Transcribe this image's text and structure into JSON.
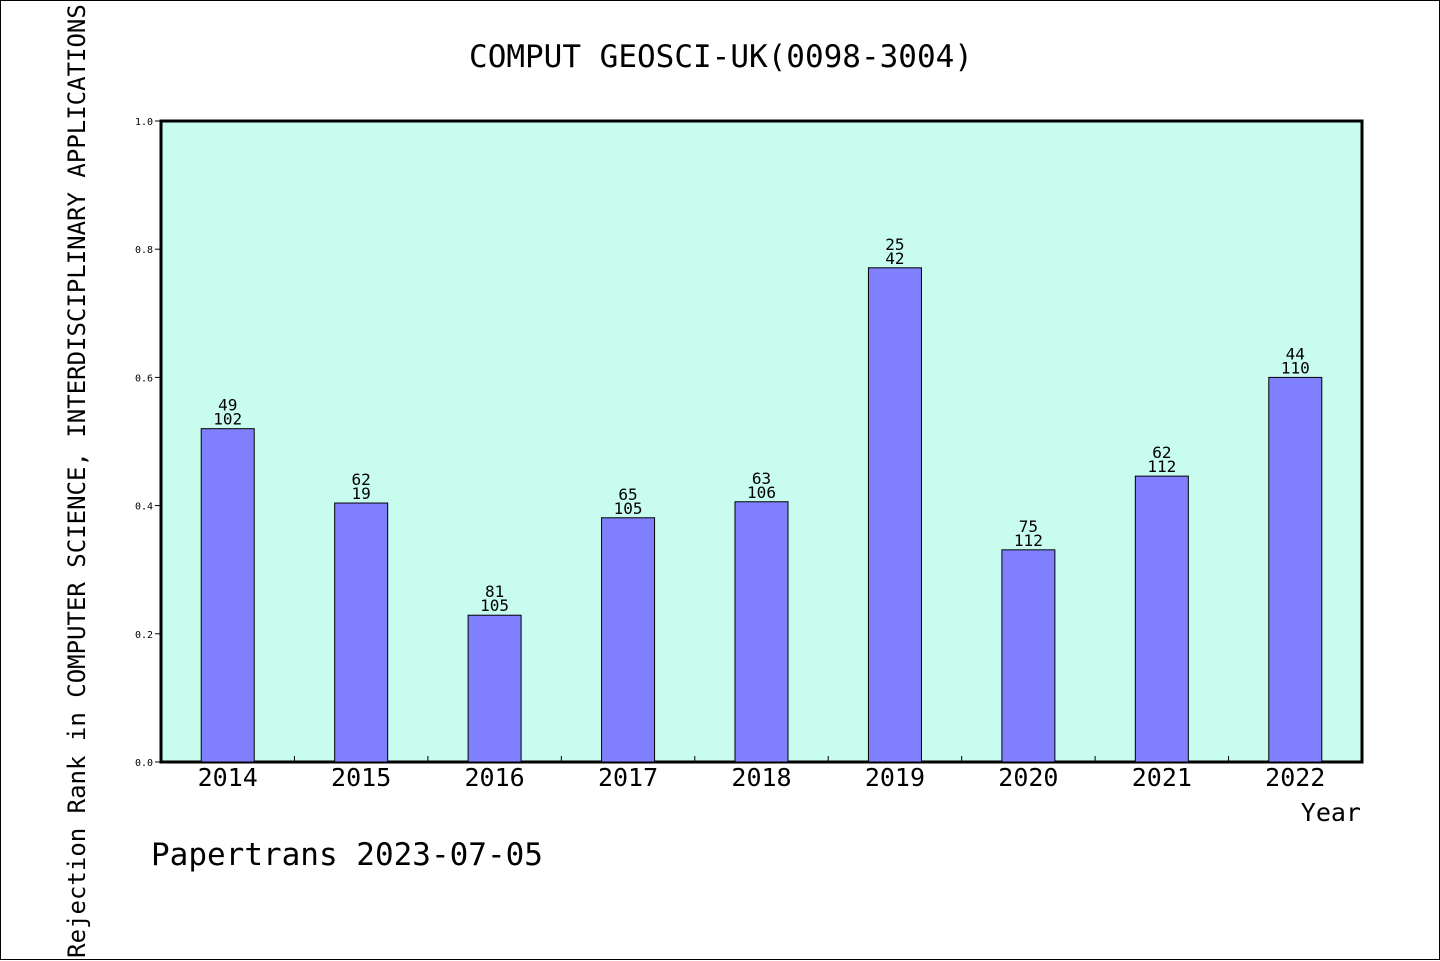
{
  "chart_data": {
    "type": "bar",
    "title": "COMPUT GEOSCI-UK(0098-3004)",
    "xlabel": "Year",
    "ylabel": "Rejection Rank in COMPUTER SCIENCE, INTERDISCIPLINARY APPLICATIONS",
    "footer": "Papertrans 2023-07-05",
    "ylim": [
      0,
      1.0
    ],
    "yticks": [
      "0.0",
      "0.2",
      "0.4",
      "0.6",
      "0.8",
      "1.0"
    ],
    "grid": false,
    "categories": [
      "2014",
      "2015",
      "2016",
      "2017",
      "2018",
      "2019",
      "2020",
      "2021",
      "2022"
    ],
    "values": [
      0.52,
      0.404,
      0.229,
      0.381,
      0.406,
      0.771,
      0.331,
      0.446,
      0.6
    ],
    "labels_top": [
      "49",
      "62",
      "81",
      "65",
      "63",
      "25",
      "75",
      "62",
      "44"
    ],
    "labels_bottom": [
      "102",
      "19",
      "105",
      "105",
      "106",
      "42",
      "112",
      "112",
      "110"
    ],
    "colors": {
      "plot_background": "#c8fcee",
      "bar_fill": "#8080ff",
      "bar_stroke": "#000000"
    }
  }
}
